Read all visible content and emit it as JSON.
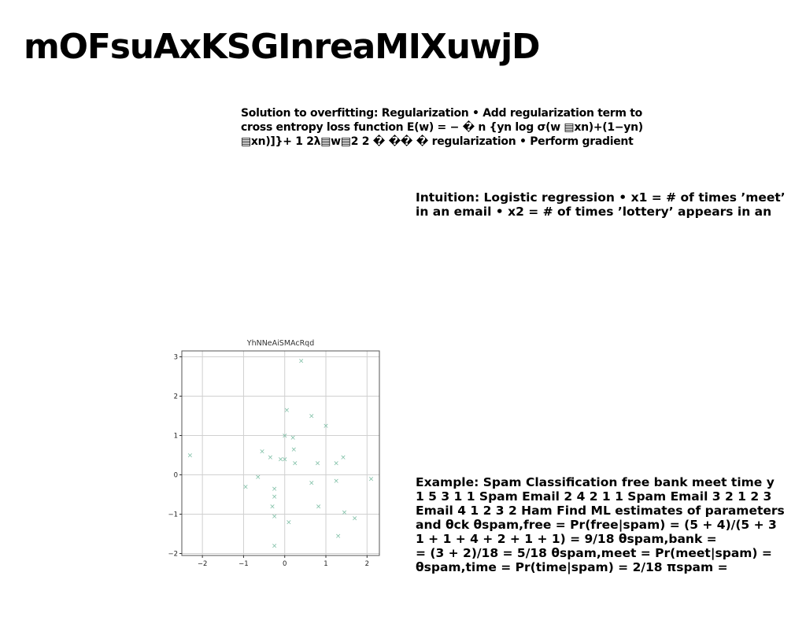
{
  "title": "mOFsuAxKSGInreaMIXuwjD",
  "blocks": {
    "regularization": "Solution to overfitting: Regularization • Add regularization term to\ncross entropy loss function E(w) = − � n {yn log σ(w ▤xn)+(1−yn)\n▤xn)]}+ 1 2λ▤w▤2 2 � �� � regularization • Perform gradient",
    "intuition": "Intuition: Logistic regression • x1 = # of times ’meet’\nin an email • x2 = # of times ’lottery’ appears in an",
    "example": "Example: Spam Classification free bank meet time y\n1 5 3 1 1 Spam Email 2 4 2 1 1 Spam Email 3 2 1 2 3\nEmail 4 1 2 3 2 Ham Find ML estimates of parameters\nand θck θspam,free = Pr(free|spam) = (5 + 4)/(5 + 3\n1 + 1 + 4 + 2 + 1 + 1) = 9/18 θspam,bank =\n= (3 + 2)/18 = 5/18 θspam,meet = Pr(meet|spam) =\nθspam,time = Pr(time|spam) = 2/18 πspam ="
  },
  "chart_data": {
    "type": "scatter",
    "title": "YhNNeAiSMAcRqd",
    "marker": "x",
    "color": "#7fbfa6",
    "grid": true,
    "xlim": [
      -2.5,
      2.3
    ],
    "ylim": [
      -2.05,
      3.15
    ],
    "xticks": [
      -2,
      -1,
      0,
      1,
      2
    ],
    "yticks": [
      -2,
      -1,
      0,
      1,
      2,
      3
    ],
    "xtick_labels": [
      "−2",
      "−1",
      "0",
      "1",
      "2"
    ],
    "ytick_labels": [
      "−2",
      "−1",
      "0",
      "1",
      "2",
      "3"
    ],
    "points": [
      {
        "x": -2.3,
        "y": 0.5
      },
      {
        "x": 0.4,
        "y": 2.9
      },
      {
        "x": 0.05,
        "y": 1.65
      },
      {
        "x": 0.65,
        "y": 1.5
      },
      {
        "x": 1.0,
        "y": 1.25
      },
      {
        "x": 0.0,
        "y": 1.0
      },
      {
        "x": 0.2,
        "y": 0.95
      },
      {
        "x": -0.55,
        "y": 0.6
      },
      {
        "x": 0.22,
        "y": 0.65
      },
      {
        "x": -0.35,
        "y": 0.45
      },
      {
        "x": -0.1,
        "y": 0.4
      },
      {
        "x": 0.0,
        "y": 0.4
      },
      {
        "x": 0.25,
        "y": 0.3
      },
      {
        "x": 0.8,
        "y": 0.3
      },
      {
        "x": 1.25,
        "y": 0.3
      },
      {
        "x": 1.42,
        "y": 0.45
      },
      {
        "x": -0.65,
        "y": -0.05
      },
      {
        "x": -0.95,
        "y": -0.3
      },
      {
        "x": -0.25,
        "y": -0.35
      },
      {
        "x": -0.25,
        "y": -0.55
      },
      {
        "x": 0.65,
        "y": -0.2
      },
      {
        "x": 1.25,
        "y": -0.15
      },
      {
        "x": 2.1,
        "y": -0.1
      },
      {
        "x": -0.3,
        "y": -0.8
      },
      {
        "x": -0.25,
        "y": -1.05
      },
      {
        "x": 0.1,
        "y": -1.2
      },
      {
        "x": 0.82,
        "y": -0.8
      },
      {
        "x": 1.45,
        "y": -0.95
      },
      {
        "x": 1.7,
        "y": -1.1
      },
      {
        "x": 1.3,
        "y": -1.55
      },
      {
        "x": -0.25,
        "y": -1.8
      }
    ]
  }
}
